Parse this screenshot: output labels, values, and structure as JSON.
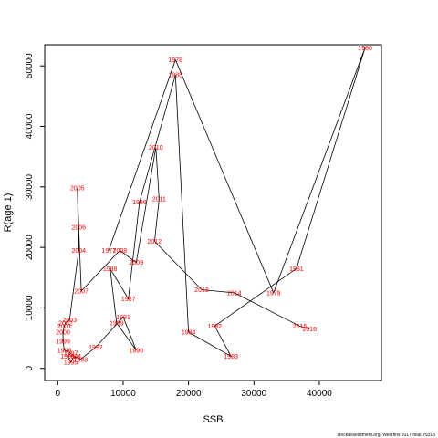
{
  "chart_data": {
    "type": "line",
    "xlabel": "SSB",
    "ylabel": "R(age 1)",
    "xlim": [
      -2000,
      49500
    ],
    "ylim": [
      -2000,
      53500
    ],
    "xticks": [
      0,
      10000,
      20000,
      30000,
      40000
    ],
    "yticks": [
      0,
      10000,
      20000,
      30000,
      40000,
      50000
    ],
    "line_color": "#000000",
    "label_color": "#ff0000",
    "caption": "stockassessment.org,  Westfins  2017  final,  r9315",
    "points": [
      {
        "label": "1977",
        "x": 7800,
        "y": 19500
      },
      {
        "label": "1978",
        "x": 18000,
        "y": 51000
      },
      {
        "label": "1979",
        "x": 33000,
        "y": 12500
      },
      {
        "label": "1980",
        "x": 47000,
        "y": 53000
      },
      {
        "label": "1981",
        "x": 36500,
        "y": 16500
      },
      {
        "label": "1982",
        "x": 24000,
        "y": 7000
      },
      {
        "label": "1983",
        "x": 26500,
        "y": 2000
      },
      {
        "label": "1984",
        "x": 20000,
        "y": 6000
      },
      {
        "label": "1985",
        "x": 18000,
        "y": 48500
      },
      {
        "label": "1986",
        "x": 12500,
        "y": 27500
      },
      {
        "label": "1987",
        "x": 10800,
        "y": 11500
      },
      {
        "label": "1988",
        "x": 8000,
        "y": 16500
      },
      {
        "label": "1989",
        "x": 9000,
        "y": 7500
      },
      {
        "label": "1990",
        "x": 12000,
        "y": 3000
      },
      {
        "label": "1991",
        "x": 10000,
        "y": 8500
      },
      {
        "label": "1992",
        "x": 5800,
        "y": 3500
      },
      {
        "label": "1993",
        "x": 3500,
        "y": 1500
      },
      {
        "label": "1994",
        "x": 2500,
        "y": 2000
      },
      {
        "label": "1995",
        "x": 2000,
        "y": 1000
      },
      {
        "label": "1996",
        "x": 1500,
        "y": 2000
      },
      {
        "label": "1997",
        "x": 2000,
        "y": 2500
      },
      {
        "label": "1998",
        "x": 1000,
        "y": 3000
      },
      {
        "label": "1999",
        "x": 800,
        "y": 4500
      },
      {
        "label": "2000",
        "x": 800,
        "y": 6000
      },
      {
        "label": "2001",
        "x": 1000,
        "y": 7000
      },
      {
        "label": "2002",
        "x": 1200,
        "y": 7500
      },
      {
        "label": "2003",
        "x": 1800,
        "y": 8000
      },
      {
        "label": "2004",
        "x": 3200,
        "y": 19500
      },
      {
        "label": "2005",
        "x": 3000,
        "y": 29800
      },
      {
        "label": "2006",
        "x": 3200,
        "y": 23300
      },
      {
        "label": "2007",
        "x": 3600,
        "y": 12800
      },
      {
        "label": "2008",
        "x": 9500,
        "y": 19500
      },
      {
        "label": "2009",
        "x": 12000,
        "y": 17500
      },
      {
        "label": "2010",
        "x": 15000,
        "y": 36500
      },
      {
        "label": "2011",
        "x": 15500,
        "y": 28000
      },
      {
        "label": "2012",
        "x": 14800,
        "y": 21000
      },
      {
        "label": "2013",
        "x": 22000,
        "y": 13000
      },
      {
        "label": "2014",
        "x": 27000,
        "y": 12500
      },
      {
        "label": "2015",
        "x": 37000,
        "y": 7000
      },
      {
        "label": "2016",
        "x": 38500,
        "y": 6500
      }
    ]
  }
}
